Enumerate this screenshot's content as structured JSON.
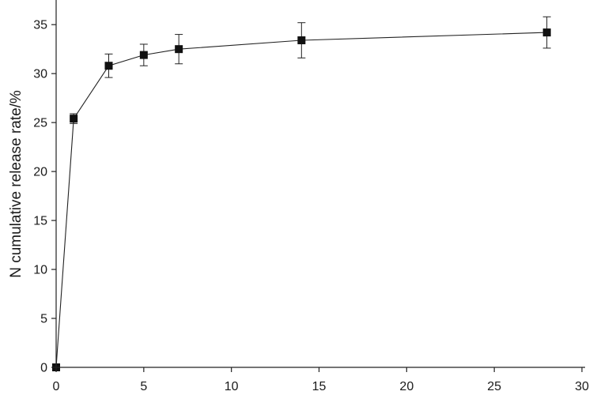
{
  "chart_data": {
    "type": "line",
    "title": "",
    "xlabel": "",
    "ylabel": "N cumulative release rate/%",
    "xlim": [
      0,
      30
    ],
    "ylim": [
      0,
      38
    ],
    "x_ticks": [
      "0",
      "5",
      "10",
      "15",
      "20",
      "25",
      "30"
    ],
    "y_ticks": [
      "0",
      "5",
      "10",
      "15",
      "20",
      "25",
      "30",
      "35"
    ],
    "grid": false,
    "legend": "none",
    "marker": "square",
    "series": [
      {
        "x": [
          0,
          1,
          3,
          5,
          7,
          14,
          28
        ],
        "y": [
          0,
          25.4,
          30.8,
          31.9,
          32.5,
          33.4,
          34.2
        ],
        "error": [
          0,
          0.5,
          1.2,
          1.1,
          1.5,
          1.8,
          1.6
        ]
      }
    ],
    "colors": {
      "line": "#222222",
      "marker": "#111111",
      "axis": "#222222"
    }
  }
}
